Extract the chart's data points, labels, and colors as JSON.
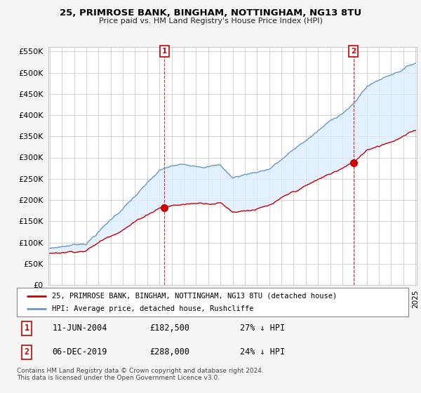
{
  "title": "25, PRIMROSE BANK, BINGHAM, NOTTINGHAM, NG13 8TU",
  "subtitle": "Price paid vs. HM Land Registry's House Price Index (HPI)",
  "hpi_color": "#6699cc",
  "price_color": "#cc0000",
  "fill_color": "#ddeeff",
  "background_color": "#f5f5f5",
  "plot_bg_color": "#ffffff",
  "grid_color": "#cccccc",
  "transaction1": {
    "label": "1",
    "date": "11-JUN-2004",
    "price": 182500,
    "pct": "27% ↓ HPI",
    "year": 2004.45
  },
  "transaction2": {
    "label": "2",
    "date": "06-DEC-2019",
    "price": 288000,
    "pct": "24% ↓ HPI",
    "year": 2019.92
  },
  "legend_line1": "25, PRIMROSE BANK, BINGHAM, NOTTINGHAM, NG13 8TU (detached house)",
  "legend_line2": "HPI: Average price, detached house, Rushcliffe",
  "footer": "Contains HM Land Registry data © Crown copyright and database right 2024.\nThis data is licensed under the Open Government Licence v3.0."
}
